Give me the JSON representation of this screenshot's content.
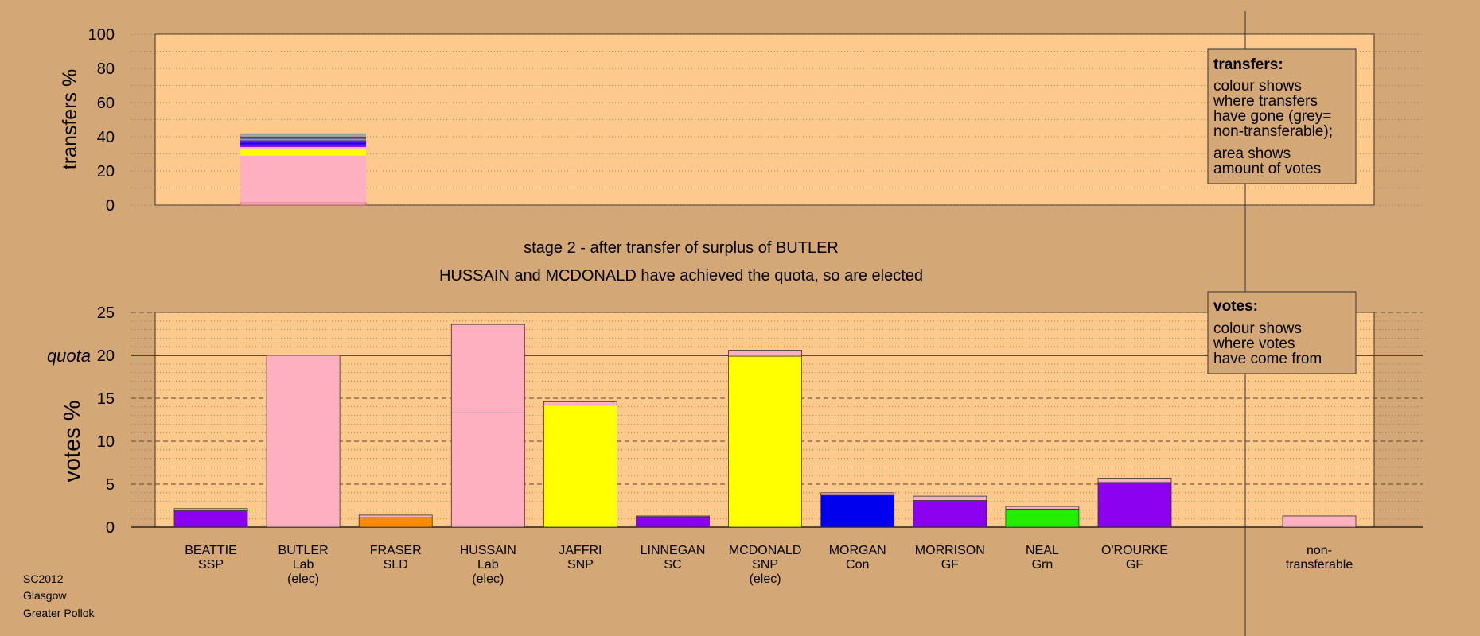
{
  "colors": {
    "background": "#d4a876",
    "plot_bg": "#fec98c",
    "pink": "#ffb0c0",
    "yellow": "#ffff00",
    "purple": "#8b00ee",
    "orange": "#ff8c00",
    "blue": "#0000ee",
    "green": "#22ee00",
    "grey": "#a0a0a0"
  },
  "footer": [
    "SC2012",
    "Glasgow",
    "Greater Pollok"
  ],
  "chart_data": [
    {
      "type": "bar",
      "name": "transfers",
      "ylabel": "transfers %",
      "ylim": [
        0,
        100
      ],
      "yticks": [
        0,
        20,
        40,
        60,
        80,
        100
      ],
      "grid": "dotted",
      "legend": {
        "title": "transfers:",
        "lines": [
          "colour shows",
          "where transfers",
          "have gone (grey=",
          "non-transferable);",
          "area shows",
          "amount of votes"
        ],
        "placement": "top-right"
      },
      "bars": [
        {
          "candidate": "BUTLER",
          "segments": [
            {
              "color": "pink",
              "value": 1.5,
              "outlined": true
            },
            {
              "color": "pink",
              "value": 27.5
            },
            {
              "color": "yellow",
              "value": 4
            },
            {
              "color": "pink",
              "value": 1
            },
            {
              "color": "purple",
              "value": 1.5
            },
            {
              "color": "blue",
              "value": 1
            },
            {
              "color": "purple",
              "value": 1.5
            },
            {
              "color": "green",
              "value": 0.8
            },
            {
              "color": "purple",
              "value": 1.2
            },
            {
              "color": "grey",
              "value": 2
            }
          ]
        }
      ]
    },
    {
      "type": "bar",
      "name": "votes",
      "title": "stage 2 - after transfer of surplus of BUTLER",
      "subtitle": "HUSSAIN and MCDONALD have achieved the quota, so are elected",
      "ylabel": "votes %",
      "ylim": [
        0,
        25
      ],
      "yticks": [
        0,
        5,
        10,
        15,
        20,
        25
      ],
      "quota": 20,
      "quota_label": "quota",
      "grid": "dashed",
      "legend": {
        "title": "votes:",
        "lines": [
          "colour shows",
          "where votes",
          "have come from"
        ],
        "placement": "top-right"
      },
      "categories": [
        {
          "name": "BEATTIE",
          "party": "SSP",
          "note": "",
          "segments": [
            {
              "color": "purple",
              "value": 1.9
            },
            {
              "color": "pink",
              "value": 0.25
            }
          ]
        },
        {
          "name": "BUTLER",
          "party": "Lab",
          "note": "(elec)",
          "segments": [
            {
              "color": "pink",
              "value": 20
            }
          ]
        },
        {
          "name": "FRASER",
          "party": "SLD",
          "note": "",
          "segments": [
            {
              "color": "orange",
              "value": 1.1
            },
            {
              "color": "pink",
              "value": 0.3
            }
          ]
        },
        {
          "name": "HUSSAIN",
          "party": "Lab",
          "note": "(elec)",
          "segments": [
            {
              "color": "pink",
              "value": 13.3
            },
            {
              "color": "pink",
              "value": 10.3
            }
          ]
        },
        {
          "name": "JAFFRI",
          "party": "SNP",
          "note": "",
          "segments": [
            {
              "color": "yellow",
              "value": 14.2
            },
            {
              "color": "pink",
              "value": 0.4
            }
          ]
        },
        {
          "name": "LINNEGAN",
          "party": "SC",
          "note": "",
          "segments": [
            {
              "color": "purple",
              "value": 1.2
            },
            {
              "color": "pink",
              "value": 0.1
            }
          ]
        },
        {
          "name": "MCDONALD",
          "party": "SNP",
          "note": "(elec)",
          "segments": [
            {
              "color": "yellow",
              "value": 19.9
            },
            {
              "color": "pink",
              "value": 0.7
            }
          ]
        },
        {
          "name": "MORGAN",
          "party": "Con",
          "note": "",
          "segments": [
            {
              "color": "blue",
              "value": 3.7
            },
            {
              "color": "pink",
              "value": 0.3
            }
          ]
        },
        {
          "name": "MORRISON",
          "party": "GF",
          "note": "",
          "segments": [
            {
              "color": "purple",
              "value": 3.1
            },
            {
              "color": "pink",
              "value": 0.5
            }
          ]
        },
        {
          "name": "NEAL",
          "party": "Grn",
          "note": "",
          "segments": [
            {
              "color": "green",
              "value": 2.1
            },
            {
              "color": "pink",
              "value": 0.3
            }
          ]
        },
        {
          "name": "O'ROURKE",
          "party": "GF",
          "note": "",
          "segments": [
            {
              "color": "purple",
              "value": 5.2
            },
            {
              "color": "pink",
              "value": 0.5
            }
          ]
        }
      ],
      "nontransferable": {
        "label": [
          "non-",
          "transferable"
        ],
        "segments": [
          {
            "color": "pink",
            "value": 1.3
          }
        ]
      }
    }
  ]
}
